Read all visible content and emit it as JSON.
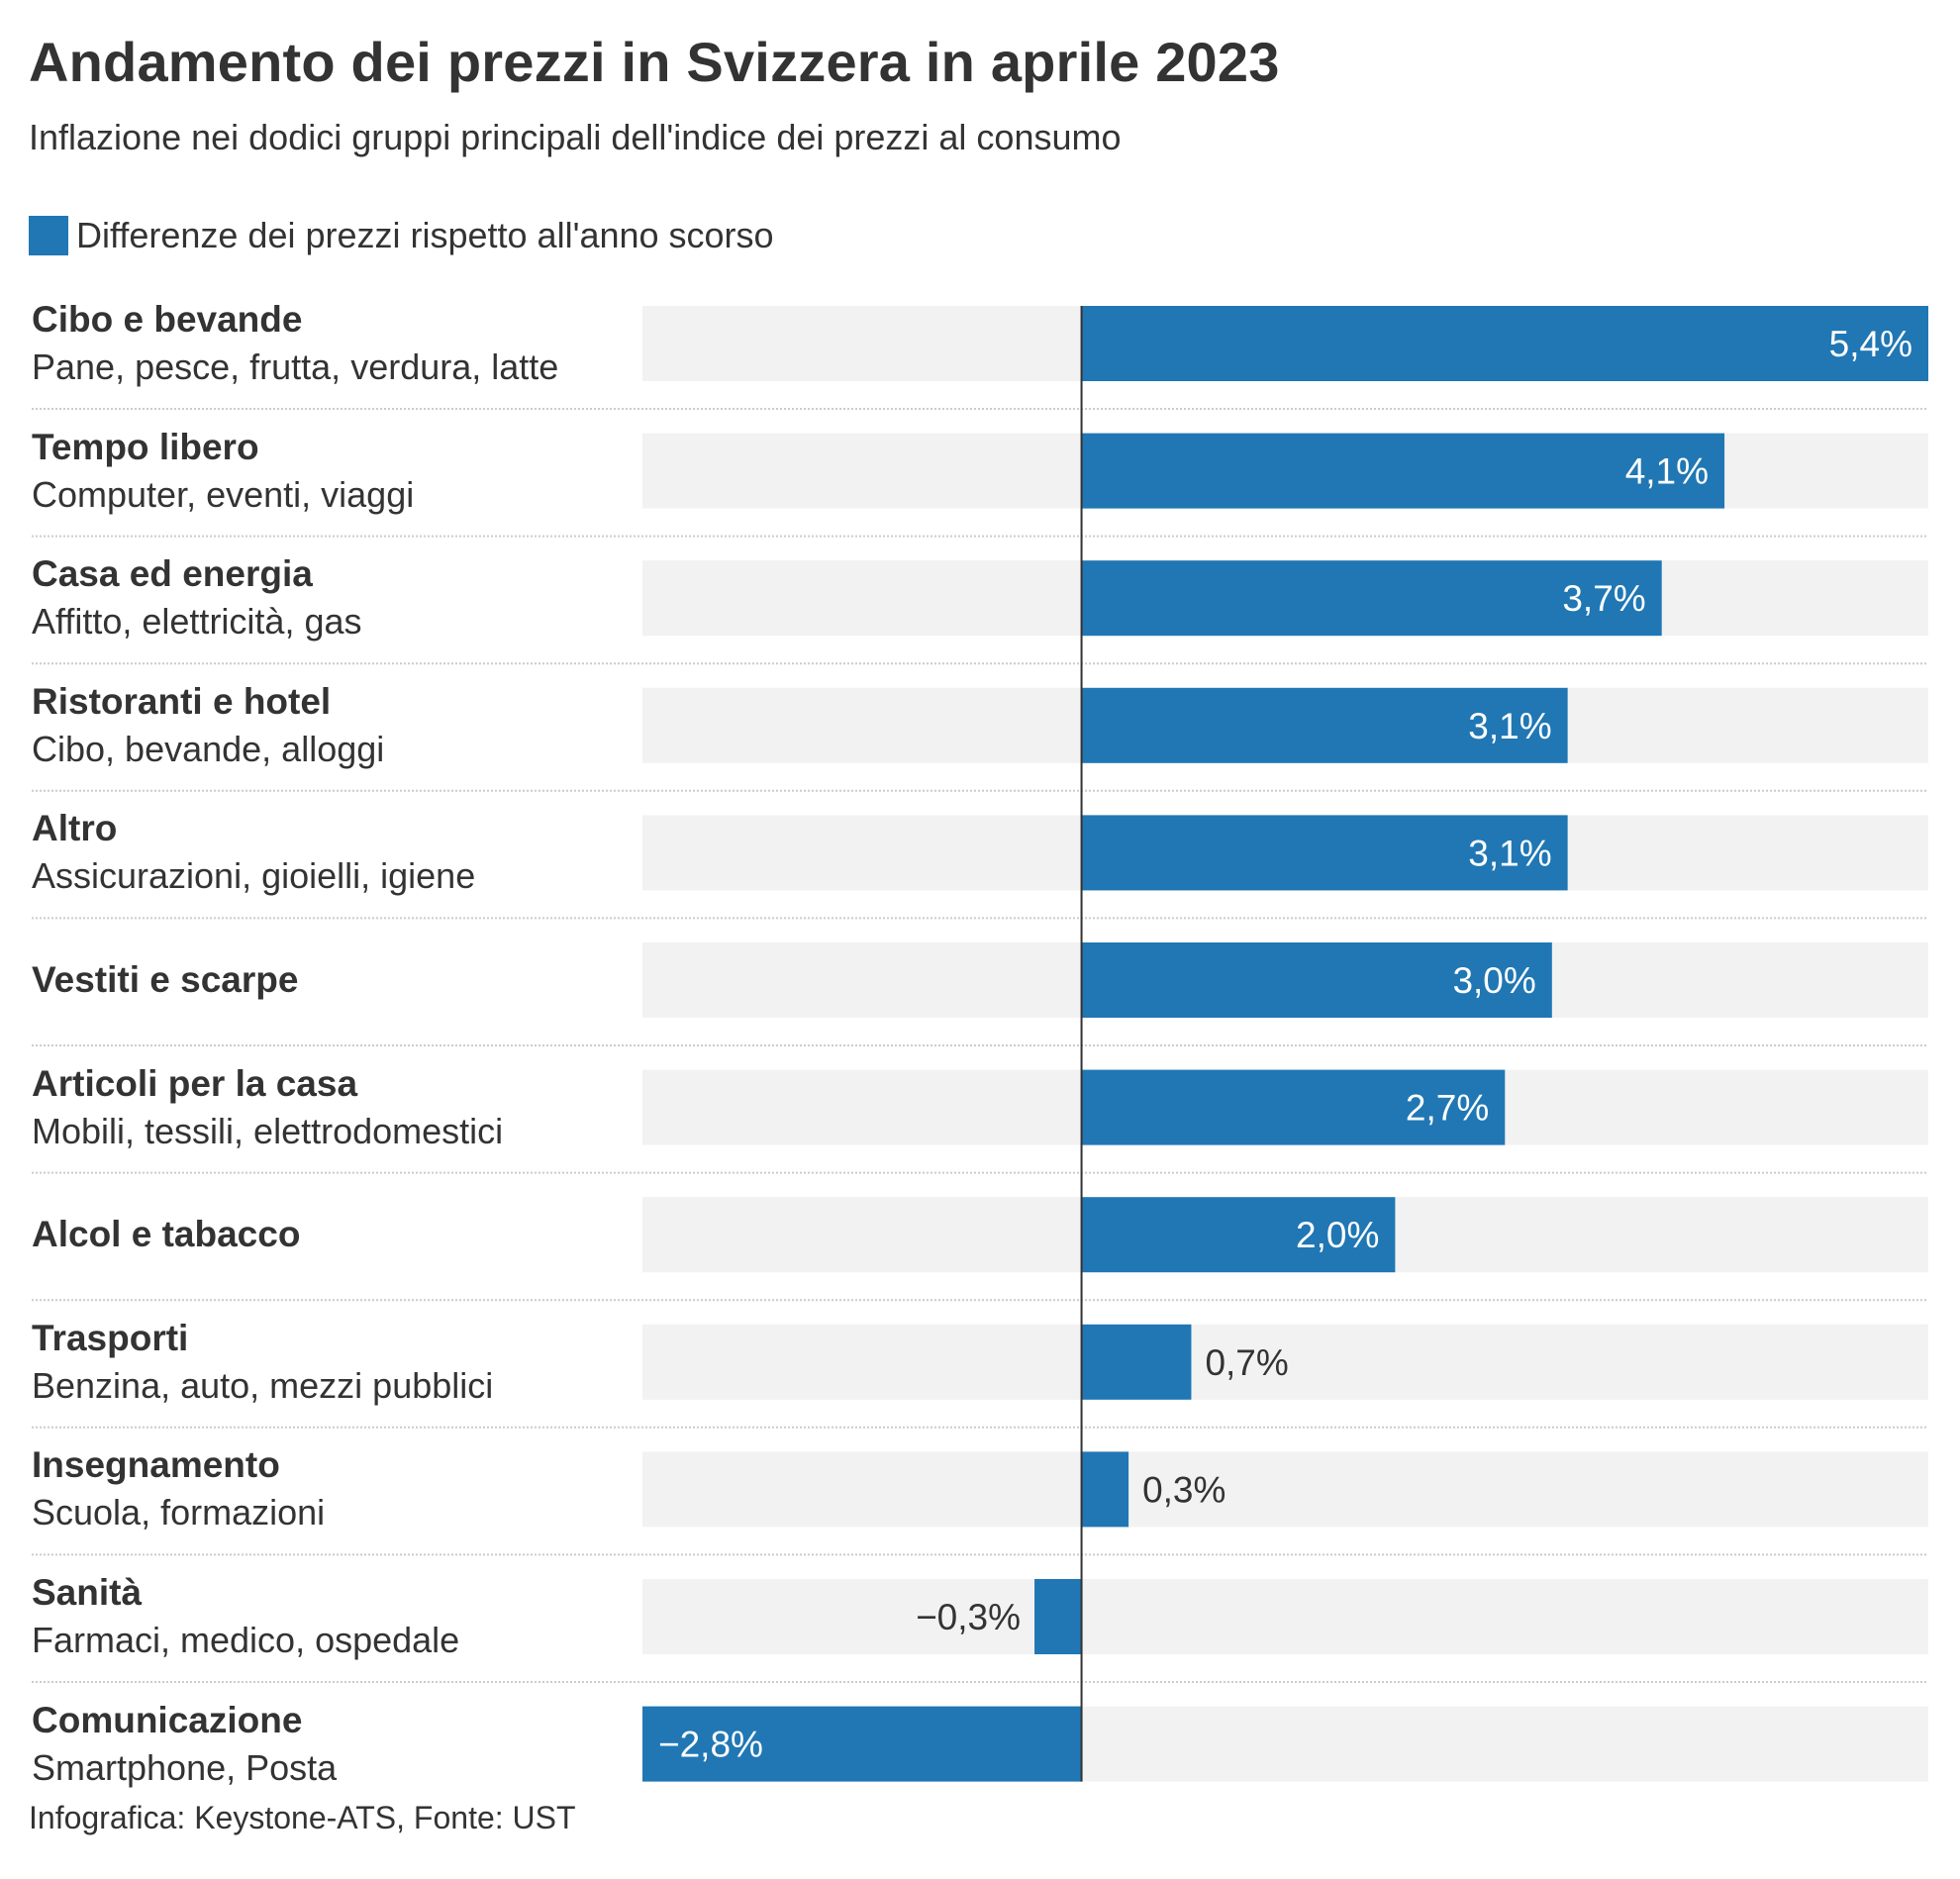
{
  "title": "Andamento dei prezzi in Svizzera in aprile 2023",
  "subtitle": "Inflazione nei dodici gruppi principali dell'indice dei prezzi al consumo",
  "legend": {
    "label": "Differenze dei prezzi rispetto all'anno scorso",
    "color": "#2077b4"
  },
  "footer": "Infografica: Keystone-ATS, Fonte: UST",
  "colors": {
    "bar": "#2077b4",
    "track": "#f2f2f2",
    "zero_line": "#333333",
    "separator": "#cccccc"
  },
  "chart_data": {
    "type": "bar",
    "orientation": "horizontal",
    "title": "Andamento dei prezzi in Svizzera in aprile 2023",
    "subtitle": "Inflazione nei dodici gruppi principali dell'indice dei prezzi al consumo",
    "xlabel": "",
    "ylabel": "",
    "unit": "%",
    "xlim": [
      -2.8,
      5.4
    ],
    "grid": false,
    "legend_position": "top-left",
    "series": [
      {
        "name": "Differenze dei prezzi rispetto all'anno scorso"
      }
    ],
    "categories": [
      {
        "name": "Cibo e bevande",
        "desc": "Pane, pesce, frutta, verdura, latte",
        "value": 5.4,
        "label": "5,4%"
      },
      {
        "name": "Tempo libero",
        "desc": "Computer, eventi, viaggi",
        "value": 4.1,
        "label": "4,1%"
      },
      {
        "name": "Casa ed energia",
        "desc": "Affitto, elettricità, gas",
        "value": 3.7,
        "label": "3,7%"
      },
      {
        "name": "Ristoranti e hotel",
        "desc": "Cibo, bevande, alloggi",
        "value": 3.1,
        "label": "3,1%"
      },
      {
        "name": "Altro",
        "desc": "Assicurazioni, gioielli, igiene",
        "value": 3.1,
        "label": "3,1%"
      },
      {
        "name": "Vestiti e scarpe",
        "desc": "",
        "value": 3.0,
        "label": "3,0%"
      },
      {
        "name": "Articoli per la casa",
        "desc": "Mobili, tessili, elettrodomestici",
        "value": 2.7,
        "label": "2,7%"
      },
      {
        "name": "Alcol e tabacco",
        "desc": "",
        "value": 2.0,
        "label": "2,0%"
      },
      {
        "name": "Trasporti",
        "desc": "Benzina, auto, mezzi pubblici",
        "value": 0.7,
        "label": "0,7%"
      },
      {
        "name": "Insegnamento",
        "desc": "Scuola, formazioni",
        "value": 0.3,
        "label": "0,3%"
      },
      {
        "name": "Sanità",
        "desc": "Farmaci, medico, ospedale",
        "value": -0.3,
        "label": "−0,3%"
      },
      {
        "name": "Comunicazione",
        "desc": "Smartphone, Posta",
        "value": -2.8,
        "label": "−2,8%"
      }
    ]
  }
}
